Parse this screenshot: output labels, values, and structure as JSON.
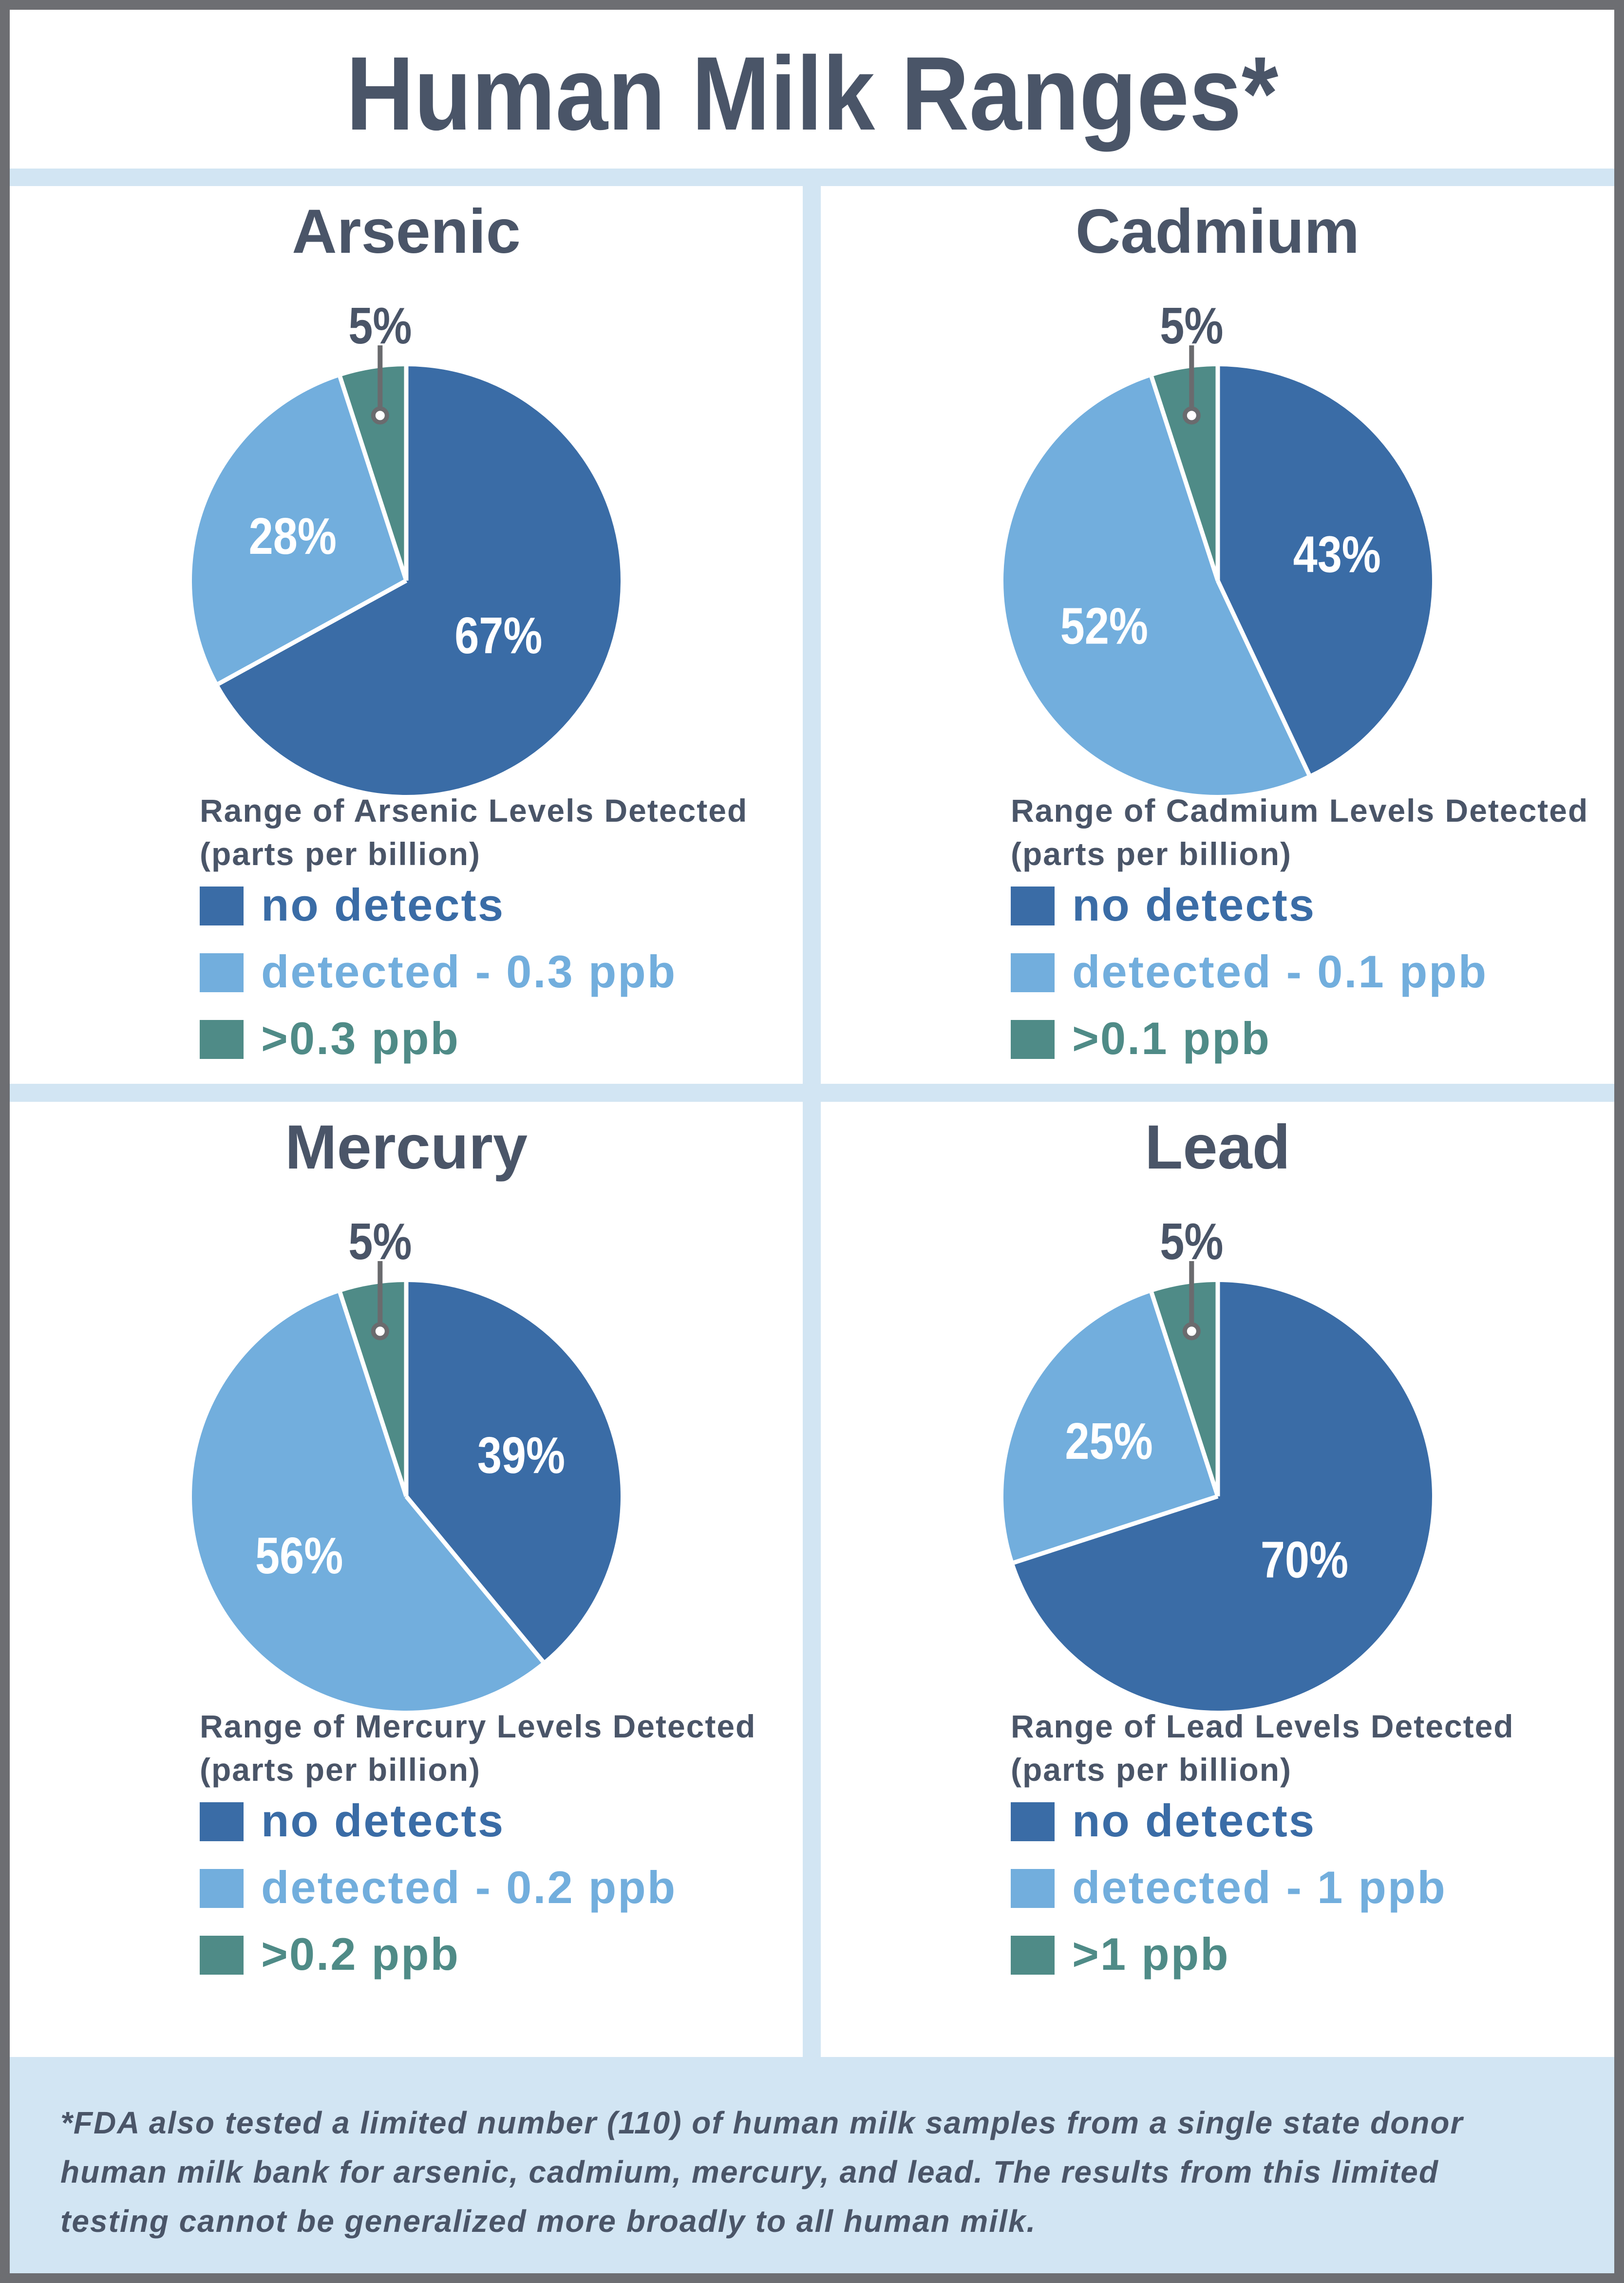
{
  "title": "Human Milk Ranges*",
  "colors": {
    "dark_blue": "#3a6ca6",
    "light_blue": "#72aedd",
    "teal": "#4f8b87",
    "slate": "#4a5568",
    "white": "#ffffff",
    "page_background": "#d2e5f3",
    "panel_background": "#ffffff",
    "border_gray": "#6d6e72",
    "callout_gray": "#6a6b6e"
  },
  "chart_data": [
    {
      "type": "pie",
      "heading": "Arsenic",
      "caption_line1": "Range of Arsenic Levels Detected",
      "caption_line2": "(parts per billion)",
      "start_angle_deg": 0,
      "direction": "clockwise",
      "slices": [
        {
          "label": "67%",
          "value": 67,
          "color_key": "dark_blue",
          "legend": "no detects"
        },
        {
          "label": "28%",
          "value": 28,
          "color_key": "light_blue",
          "legend": "detected - 0.3 ppb"
        },
        {
          "label": "5%",
          "value": 5,
          "color_key": "teal",
          "legend": ">0.3 ppb",
          "callout": true
        }
      ]
    },
    {
      "type": "pie",
      "heading": "Cadmium",
      "caption_line1": "Range of Cadmium Levels Detected",
      "caption_line2": "(parts per billion)",
      "start_angle_deg": 0,
      "direction": "clockwise",
      "slices": [
        {
          "label": "43%",
          "value": 43,
          "color_key": "dark_blue",
          "legend": "no detects"
        },
        {
          "label": "52%",
          "value": 52,
          "color_key": "light_blue",
          "legend": "detected - 0.1 ppb"
        },
        {
          "label": "5%",
          "value": 5,
          "color_key": "teal",
          "legend": ">0.1 ppb",
          "callout": true
        }
      ]
    },
    {
      "type": "pie",
      "heading": "Mercury",
      "caption_line1": "Range of Mercury Levels Detected",
      "caption_line2": "(parts per billion)",
      "start_angle_deg": 0,
      "direction": "clockwise",
      "slices": [
        {
          "label": "39%",
          "value": 39,
          "color_key": "dark_blue",
          "legend": "no detects"
        },
        {
          "label": "56%",
          "value": 56,
          "color_key": "light_blue",
          "legend": "detected - 0.2 ppb"
        },
        {
          "label": "5%",
          "value": 5,
          "color_key": "teal",
          "legend": ">0.2 ppb",
          "callout": true
        }
      ]
    },
    {
      "type": "pie",
      "heading": "Lead",
      "caption_line1": "Range of Lead Levels Detected",
      "caption_line2": "(parts per billion)",
      "start_angle_deg": 0,
      "direction": "clockwise",
      "slices": [
        {
          "label": "70%",
          "value": 70,
          "color_key": "dark_blue",
          "legend": "no detects"
        },
        {
          "label": "25%",
          "value": 25,
          "color_key": "light_blue",
          "legend": "detected - 1 ppb"
        },
        {
          "label": "5%",
          "value": 5,
          "color_key": "teal",
          "legend": ">1 ppb",
          "callout": true
        }
      ]
    }
  ],
  "footnote": {
    "lines": [
      "*FDA also tested a limited number (110) of human milk samples from a single state donor",
      "human milk bank for arsenic, cadmium, mercury, and lead. The results from this limited",
      "testing cannot be generalized more broadly to all human milk."
    ]
  }
}
